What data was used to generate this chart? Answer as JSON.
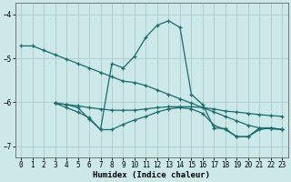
{
  "xlabel": "Humidex (Indice chaleur)",
  "background_color": "#cce8e8",
  "grid_color": "#aacccc",
  "line_color": "#1a6b6b",
  "xlim": [
    -0.5,
    23.5
  ],
  "ylim": [
    -7.25,
    -3.75
  ],
  "yticks": [
    -7,
    -6,
    -5,
    -4
  ],
  "xticks": [
    0,
    1,
    2,
    3,
    4,
    5,
    6,
    7,
    8,
    9,
    10,
    11,
    12,
    13,
    14,
    15,
    16,
    17,
    18,
    19,
    20,
    21,
    22,
    23
  ],
  "series": [
    {
      "x": [
        0,
        1,
        2,
        3,
        4,
        5,
        6,
        7,
        8,
        9,
        10,
        11,
        12,
        13,
        14,
        15,
        16,
        17,
        18,
        19,
        20,
        21,
        22,
        23
      ],
      "y": [
        -4.72,
        -4.72,
        -4.82,
        -4.92,
        -5.02,
        -5.12,
        -5.22,
        -5.32,
        -5.42,
        -5.52,
        -5.55,
        -5.62,
        -5.72,
        -5.82,
        -5.92,
        -6.02,
        -6.12,
        -6.22,
        -6.32,
        -6.42,
        -6.52,
        -6.58,
        -6.6,
        -6.62
      ]
    },
    {
      "x": [
        3,
        4,
        5,
        6,
        7,
        8,
        9,
        10,
        11,
        12,
        13,
        14,
        15,
        16,
        17,
        18,
        19,
        20,
        21,
        22,
        23
      ],
      "y": [
        -6.02,
        -6.05,
        -6.12,
        -6.38,
        -6.62,
        -5.12,
        -5.22,
        -4.95,
        -4.52,
        -4.25,
        -4.15,
        -4.3,
        -5.82,
        -6.05,
        -6.58,
        -6.6,
        -6.78,
        -6.78,
        -6.58,
        -6.58,
        -6.62
      ]
    },
    {
      "x": [
        3,
        4,
        5,
        6,
        7,
        8,
        9,
        10,
        11,
        12,
        13,
        14,
        15,
        16,
        17,
        18,
        19,
        20,
        21,
        22,
        23
      ],
      "y": [
        -6.02,
        -6.05,
        -6.08,
        -6.12,
        -6.15,
        -6.18,
        -6.18,
        -6.18,
        -6.15,
        -6.12,
        -6.1,
        -6.1,
        -6.1,
        -6.12,
        -6.15,
        -6.2,
        -6.22,
        -6.25,
        -6.28,
        -6.3,
        -6.32
      ]
    },
    {
      "x": [
        3,
        4,
        5,
        6,
        7,
        8,
        9,
        10,
        11,
        12,
        13,
        14,
        15,
        16,
        17,
        18,
        19,
        20,
        21,
        22,
        23
      ],
      "y": [
        -6.02,
        -6.12,
        -6.22,
        -6.35,
        -6.62,
        -6.62,
        -6.5,
        -6.4,
        -6.32,
        -6.22,
        -6.15,
        -6.12,
        -6.15,
        -6.25,
        -6.52,
        -6.62,
        -6.78,
        -6.78,
        -6.62,
        -6.58,
        -6.62
      ]
    }
  ]
}
